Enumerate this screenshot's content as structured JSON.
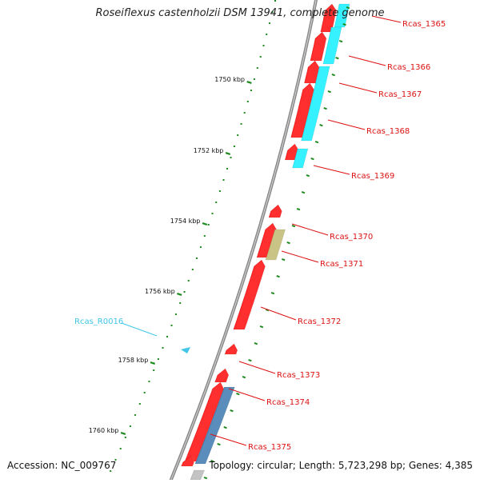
{
  "title": "Roseiflexus castenholzii DSM 13941, complete genome",
  "accession": "Accession: NC_009767",
  "topology": "Topology: circular; Length: 5,723,298 bp; Genes: 4,385",
  "colors": {
    "backbone": "#8a8a8a",
    "cds_forward": "#ff1a1a",
    "cds_reverse_cyan": "#22f0ff",
    "cds_reverse_olive": "#c4be7a",
    "cds_reverse_steel": "#4a82b4",
    "cds_reverse_gray": "#bdbdbd",
    "rna": "#3fc6e8",
    "tick": "#1f8a1f",
    "label": "#dd1111",
    "rna_label": "#3fc6e8"
  },
  "ticks": [
    {
      "label": "1750 kbp"
    },
    {
      "label": "1752 kbp"
    },
    {
      "label": "1754 kbp"
    },
    {
      "label": "1756 kbp"
    },
    {
      "label": "1758 kbp"
    },
    {
      "label": "1760 kbp"
    }
  ],
  "gene_labels": [
    {
      "text": "Rcas_1365",
      "kind": "cds"
    },
    {
      "text": "Rcas_1366",
      "kind": "cds"
    },
    {
      "text": "Rcas_1367",
      "kind": "cds"
    },
    {
      "text": "Rcas_1368",
      "kind": "cds"
    },
    {
      "text": "Rcas_1369",
      "kind": "cds"
    },
    {
      "text": "Rcas_1370",
      "kind": "cds"
    },
    {
      "text": "Rcas_1371",
      "kind": "cds"
    },
    {
      "text": "Rcas_1372",
      "kind": "cds"
    },
    {
      "text": "Rcas_1373",
      "kind": "cds"
    },
    {
      "text": "Rcas_1374",
      "kind": "cds"
    },
    {
      "text": "Rcas_1375",
      "kind": "cds"
    },
    {
      "text": "Rcas_R0016",
      "kind": "rna"
    }
  ]
}
